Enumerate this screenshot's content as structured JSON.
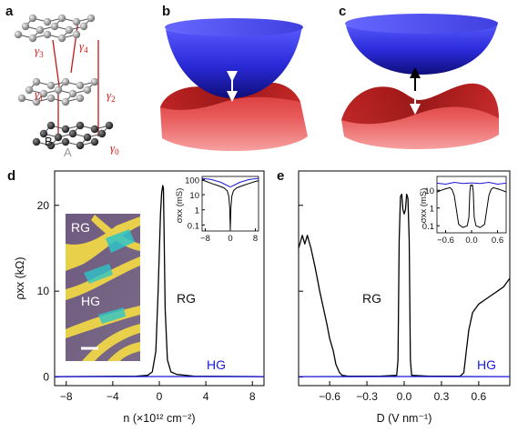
{
  "panels": {
    "a": {
      "label": "a",
      "gammas": [
        "γ",
        "γ",
        "γ",
        "γ",
        "γ"
      ],
      "gamma_subs": [
        "3",
        "4",
        "1",
        "2",
        "0"
      ],
      "sublattice_b": "B",
      "sublattice_a": "A"
    },
    "b": {
      "label": "b"
    },
    "c": {
      "label": "c"
    },
    "d": {
      "label": "d",
      "inset_label_rg": "RG",
      "inset_label_hg": "HG",
      "curve_label_rg": "RG",
      "curve_label_hg": "HG"
    },
    "e": {
      "label": "e",
      "curve_label_rg": "RG",
      "curve_label_hg": "HG"
    }
  },
  "chart_data": [
    {
      "type": "line",
      "panel": "d",
      "xlabel": "n (×10¹² cm⁻²)",
      "ylabel": "ρxx (kΩ)",
      "xlim": [
        -9,
        9
      ],
      "ylim": [
        -1,
        24
      ],
      "xticks": [
        "−8",
        "−4",
        "0",
        "4",
        "8"
      ],
      "xtick_values": [
        -8,
        -4,
        0,
        4,
        8
      ],
      "yticks": [
        "0",
        "10",
        "20"
      ],
      "ytick_values": [
        0,
        10,
        20
      ],
      "series": [
        {
          "name": "RG",
          "color": "#000000",
          "x": [
            -9,
            -2,
            -1,
            -0.6,
            -0.3,
            -0.1,
            0.1,
            0.2,
            0.3,
            0.35,
            0.4,
            0.5,
            0.7,
            1.0,
            1.5,
            3,
            9
          ],
          "y": [
            0.05,
            0.1,
            0.2,
            0.6,
            3,
            10,
            19,
            21.5,
            22.3,
            22.0,
            18,
            8,
            2,
            0.6,
            0.3,
            0.1,
            0.05
          ]
        },
        {
          "name": "HG",
          "color": "#1a1ad6",
          "x": [
            -9,
            0,
            9
          ],
          "y": [
            0.05,
            0.06,
            0.05
          ]
        }
      ],
      "inset": {
        "ylabel": "σxx (mS)",
        "xticks": [
          "−8",
          "0",
          "8"
        ],
        "xtick_values": [
          -8,
          0,
          8
        ],
        "yticks": [
          "100",
          "10",
          "1",
          "0.1"
        ],
        "ytick_values": [
          100,
          10,
          1,
          0.1
        ],
        "ylog": true,
        "xlim": [
          -9,
          9
        ],
        "ylim": [
          0.04,
          160
        ],
        "series": [
          {
            "name": "RG",
            "color": "#000000",
            "x": [
              -9,
              -8,
              -6,
              -4,
              -2,
              -1,
              -0.5,
              -0.2,
              0,
              0.2,
              0.5,
              1,
              2,
              4,
              6,
              8,
              9
            ],
            "y": [
              90,
              80,
              55,
              40,
              28,
              18,
              8,
              1.5,
              0.05,
              1.5,
              8,
              18,
              28,
              40,
              55,
              75,
              85
            ]
          },
          {
            "name": "HG",
            "color": "#1a1ad6",
            "x": [
              -9,
              -6,
              -3,
              -1,
              0,
              1,
              3,
              6,
              9
            ],
            "y": [
              120,
              100,
              65,
              40,
              32,
              40,
              65,
              100,
              120
            ]
          }
        ]
      }
    },
    {
      "type": "line",
      "panel": "e",
      "xlabel": "D (V nm⁻¹)",
      "xlim": [
        -0.85,
        0.85
      ],
      "ylim": [
        -1,
        24
      ],
      "xticks": [
        "−0.6",
        "−0.3",
        "0.0",
        "0.3",
        "0.6"
      ],
      "xtick_values": [
        -0.6,
        -0.3,
        0,
        0.3,
        0.6
      ],
      "series": [
        {
          "name": "RG",
          "color": "#000000",
          "x": [
            -0.85,
            -0.82,
            -0.8,
            -0.78,
            -0.75,
            -0.72,
            -0.7,
            -0.68,
            -0.65,
            -0.62,
            -0.6,
            -0.57,
            -0.55,
            -0.52,
            -0.5,
            -0.45,
            -0.2,
            -0.06,
            -0.05,
            -0.04,
            -0.03,
            -0.02,
            -0.01,
            0,
            0.01,
            0.02,
            0.03,
            0.04,
            0.05,
            0.06,
            0.2,
            0.45,
            0.48,
            0.5,
            0.52,
            0.55,
            0.6,
            0.65,
            0.7,
            0.75,
            0.8,
            0.85
          ],
          "y": [
            15,
            16.5,
            15.5,
            16.5,
            15,
            13,
            11.5,
            10,
            8,
            6,
            4.5,
            3,
            1.5,
            0.5,
            0.2,
            0.1,
            0.1,
            0.2,
            2,
            16,
            21,
            21.3,
            19.5,
            19,
            19.5,
            21.3,
            20.8,
            16,
            2,
            0.2,
            0.1,
            0.1,
            0.5,
            3,
            5.5,
            7.5,
            8.5,
            9,
            9.5,
            10,
            10.5,
            11.5
          ]
        },
        {
          "name": "HG",
          "color": "#1a1ad6",
          "x": [
            -0.85,
            0,
            0.85
          ],
          "y": [
            0.05,
            0.06,
            0.05
          ]
        }
      ],
      "inset": {
        "ylabel": "σxx (mS)",
        "xticks": [
          "−0.6",
          "0.0",
          "0.6"
        ],
        "xtick_values": [
          -0.6,
          0,
          0.6
        ],
        "yticks": [
          "10",
          "1",
          "0.1"
        ],
        "ytick_values": [
          10,
          1,
          0.1
        ],
        "ylog": true,
        "xlim": [
          -0.8,
          0.8
        ],
        "ylim": [
          0.04,
          60
        ],
        "series": [
          {
            "name": "RG",
            "color": "#000000",
            "x": [
              -0.8,
              -0.7,
              -0.6,
              -0.5,
              -0.45,
              -0.4,
              -0.3,
              -0.2,
              -0.1,
              -0.06,
              -0.04,
              -0.02,
              0,
              0.02,
              0.04,
              0.06,
              0.1,
              0.2,
              0.3,
              0.4,
              0.45,
              0.5,
              0.6,
              0.7,
              0.8
            ],
            "y": [
              8,
              10,
              12,
              14,
              11,
              5,
              0.12,
              0.08,
              0.1,
              0.3,
              8,
              20,
              18,
              20,
              8,
              0.3,
              0.1,
              0.08,
              0.12,
              5,
              11,
              14,
              12,
              10,
              8
            ]
          },
          {
            "name": "HG",
            "color": "#1a1ad6",
            "x": [
              -0.8,
              -0.6,
              -0.4,
              -0.2,
              0,
              0.2,
              0.4,
              0.6,
              0.8
            ],
            "y": [
              25,
              22,
              28,
              24,
              26,
              24,
              28,
              22,
              25
            ]
          }
        ]
      }
    }
  ]
}
